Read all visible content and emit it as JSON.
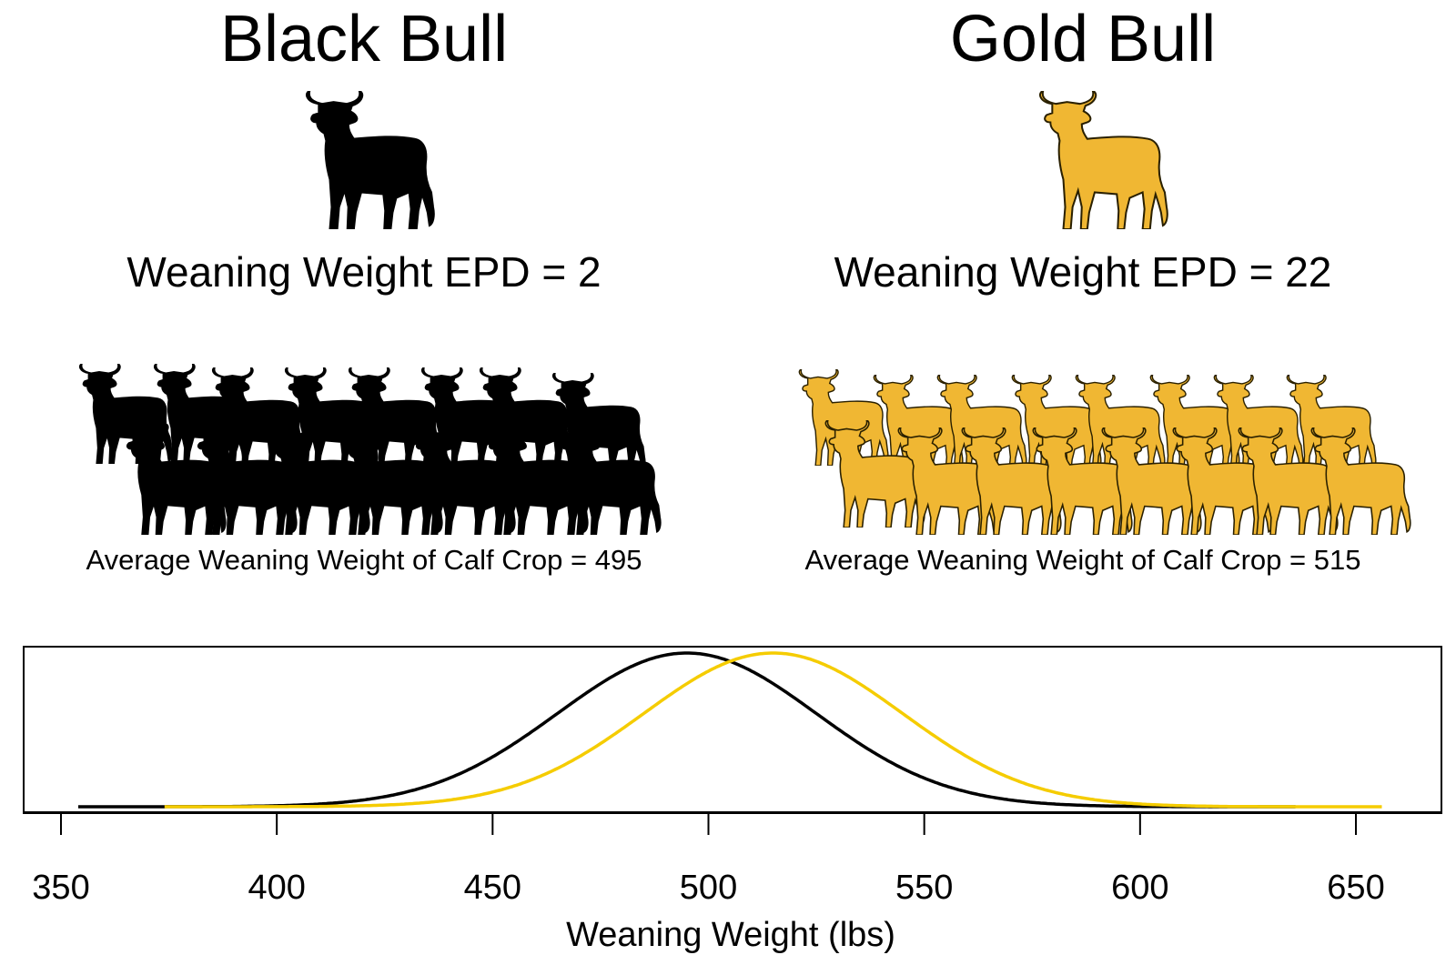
{
  "left": {
    "title": "Black Bull",
    "epd_text": "Weaning Weight EPD = 2",
    "avg_text": "Average Weaning Weight of Calf Crop = 495",
    "color": "#000000",
    "outline": "#000000",
    "bull_icon": "bull-silhouette"
  },
  "right": {
    "title": "Gold Bull",
    "epd_text": "Weaning Weight EPD = 22",
    "avg_text": "Average Weaning Weight of Calf Crop = 515",
    "color": "#F0B733",
    "outline": "#2a2000",
    "bull_icon": "bull-silhouette"
  },
  "chart_data": {
    "type": "line",
    "xlabel": "Weaning Weight (lbs)",
    "ylabel": "",
    "xlim": [
      342,
      660
    ],
    "xticks": [
      350,
      400,
      450,
      500,
      550,
      600,
      650
    ],
    "grid": false,
    "series": [
      {
        "color": "#000000",
        "mean": 495,
        "sd": 30,
        "x_start": 354,
        "x_end": 636,
        "points": [
          [
            354,
            0.0
          ],
          [
            400,
            0.7
          ],
          [
            450,
            32.5
          ],
          [
            495,
            100
          ],
          [
            540,
            32.5
          ],
          [
            590,
            0.7
          ],
          [
            636,
            0.0
          ]
        ]
      },
      {
        "color": "#F5CC00",
        "mean": 515,
        "sd": 30,
        "x_start": 374,
        "x_end": 656,
        "points": [
          [
            374,
            0.0
          ],
          [
            420,
            0.7
          ],
          [
            470,
            32.5
          ],
          [
            515,
            100
          ],
          [
            560,
            32.5
          ],
          [
            610,
            0.7
          ],
          [
            656,
            0.0
          ]
        ]
      }
    ]
  }
}
